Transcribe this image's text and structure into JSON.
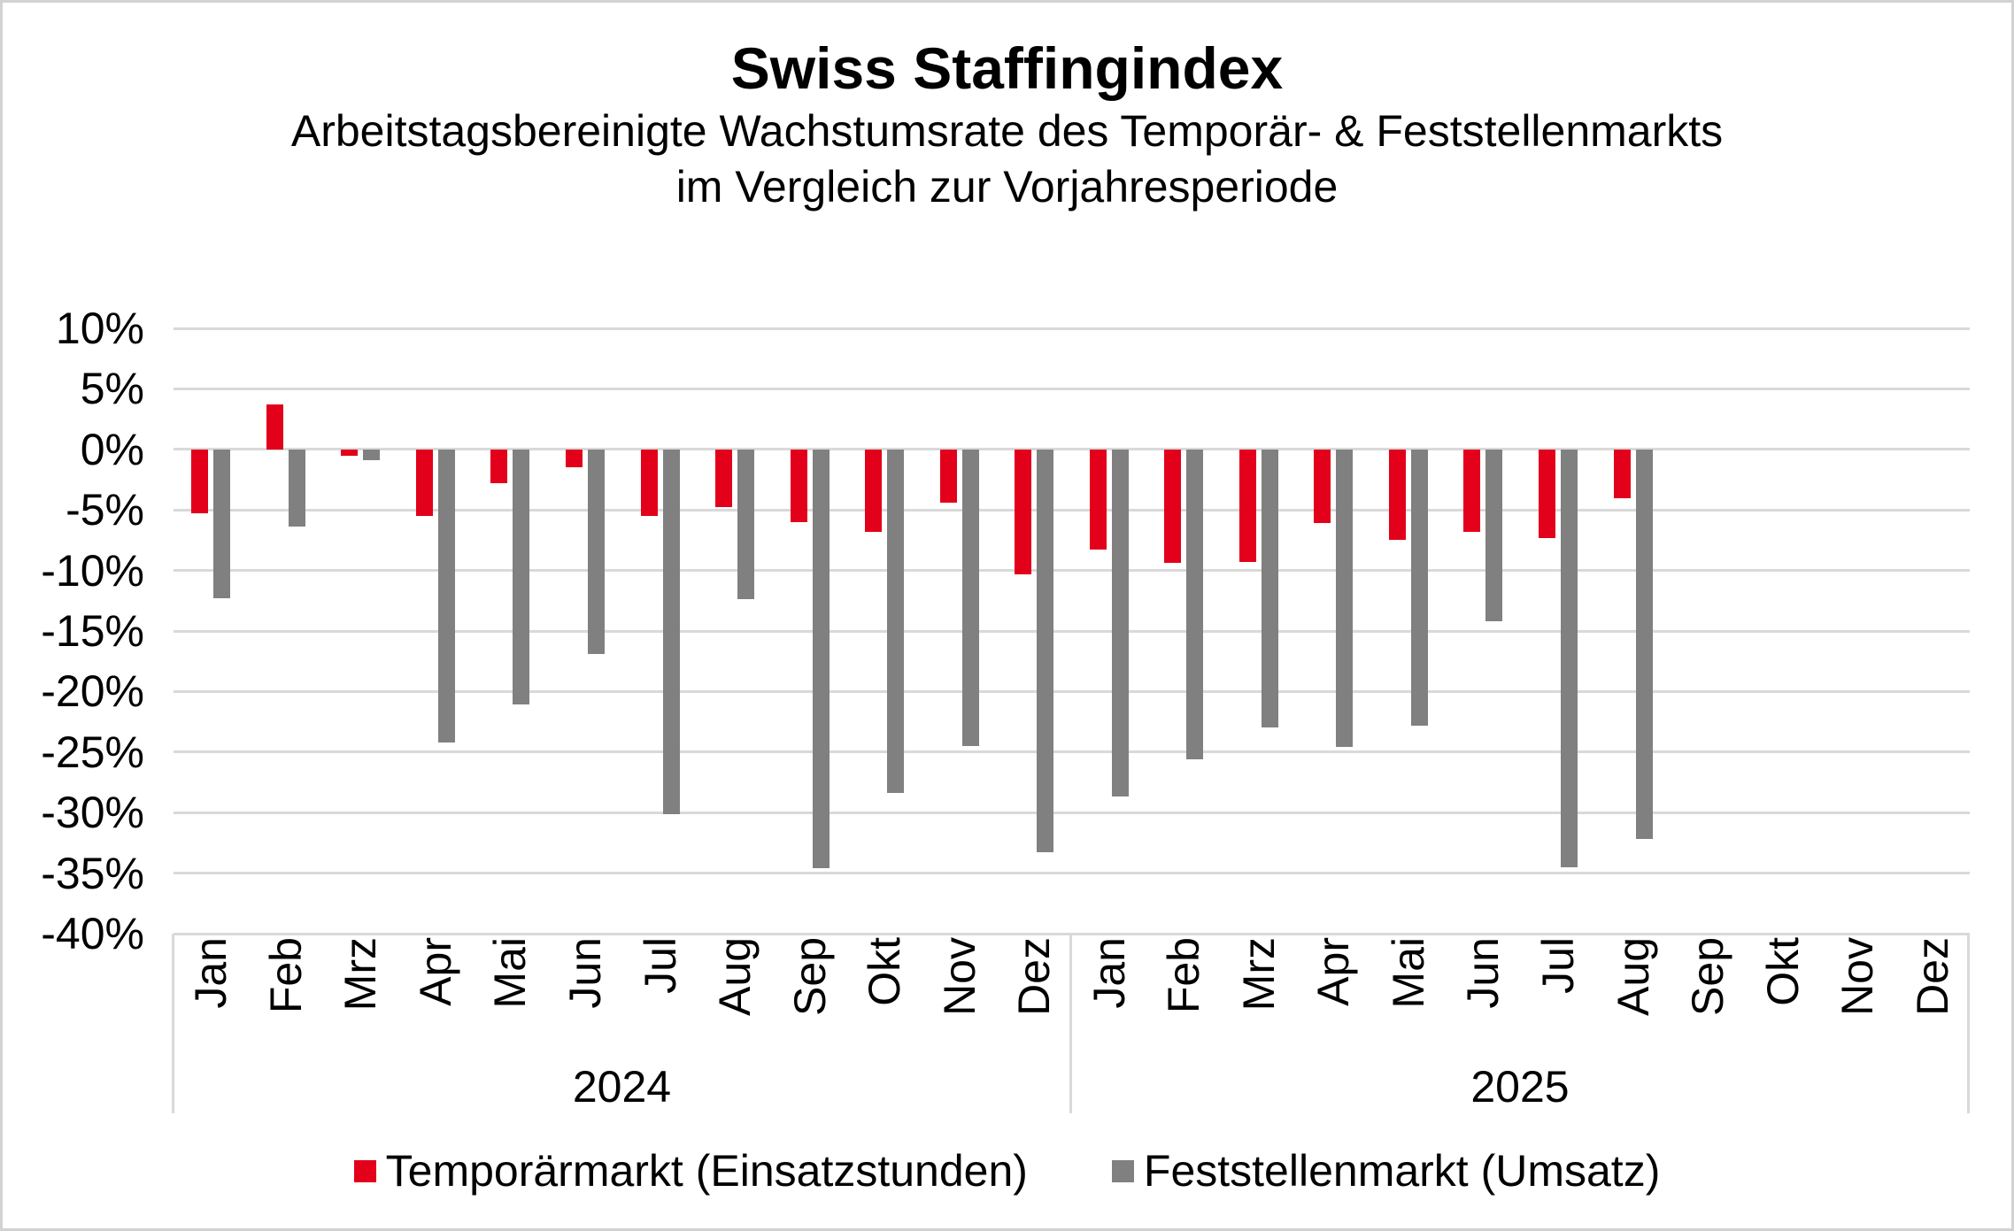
{
  "title": "Swiss Staffingindex",
  "subtitle_line1": "Arbeitstagsbereinigte Wachstumsrate des Temporär- & Feststellenmarkts",
  "subtitle_line2": "im Vergleich zur Vorjahresperiode",
  "colors": {
    "temporaermarkt_red": "#e2001a",
    "feststellenmarkt_gray": "#808080",
    "gridline_gray": "#d9d9d9",
    "text_black": "#000000"
  },
  "y_axis": {
    "tick_labels": [
      "10%",
      "5%",
      "0%",
      "-5%",
      "-10%",
      "-15%",
      "-20%",
      "-25%",
      "-30%",
      "-35%",
      "-40%"
    ],
    "max_percent": 10,
    "min_percent": -40,
    "step_percent": 5
  },
  "x_axis": {
    "month_labels": [
      "Jan",
      "Feb",
      "Mrz",
      "Apr",
      "Mai",
      "Jun",
      "Jul",
      "Aug",
      "Sep",
      "Okt",
      "Nov",
      "Dez"
    ],
    "years": [
      "2024",
      "2025"
    ]
  },
  "legend": [
    {
      "label": "Temporärmarkt (Einsatzstunden)",
      "color": "#e2001a"
    },
    {
      "label": "Feststellenmarkt (Umsatz)",
      "color": "#808080"
    }
  ],
  "chart_data": {
    "type": "bar",
    "title": "Swiss Staffingindex",
    "subtitle": "Arbeitstagsbereinigte Wachstumsrate des Temporär- & Feststellenmarkts im Vergleich zur Vorjahresperiode",
    "unit": "percent",
    "ylim": [
      -40,
      10
    ],
    "grid": true,
    "legend_position": "bottom",
    "categories": [
      "Jan 2024",
      "Feb 2024",
      "Mrz 2024",
      "Apr 2024",
      "Mai 2024",
      "Jun 2024",
      "Jul 2024",
      "Aug 2024",
      "Sep 2024",
      "Okt 2024",
      "Nov 2024",
      "Dez 2024",
      "Jan 2025",
      "Feb 2025",
      "Mrz 2025",
      "Apr 2025",
      "Mai 2025",
      "Jun 2025",
      "Jul 2025",
      "Aug 2025",
      "Sep 2025",
      "Okt 2025",
      "Nov 2025",
      "Dez 2025"
    ],
    "series": [
      {
        "name": "Temporärmarkt (Einsatzstunden)",
        "color": "#e2001a",
        "values": [
          -5.3,
          3.7,
          -0.5,
          -5.5,
          -2.8,
          -1.5,
          -5.5,
          -4.8,
          -6.0,
          -6.8,
          -4.4,
          -10.3,
          -8.3,
          -9.4,
          -9.3,
          -6.1,
          -7.5,
          -6.8,
          -7.3,
          -4.0,
          null,
          null,
          null,
          null
        ]
      },
      {
        "name": "Feststellenmarkt (Umsatz)",
        "color": "#808080",
        "values": [
          -12.3,
          -6.4,
          -0.9,
          -24.2,
          -21.1,
          -16.9,
          -30.1,
          -12.4,
          -34.6,
          -28.4,
          -24.5,
          -33.3,
          -28.7,
          -25.6,
          -23.0,
          -24.6,
          -22.8,
          -14.2,
          -34.5,
          -32.2,
          null,
          null,
          null,
          null
        ]
      }
    ]
  }
}
